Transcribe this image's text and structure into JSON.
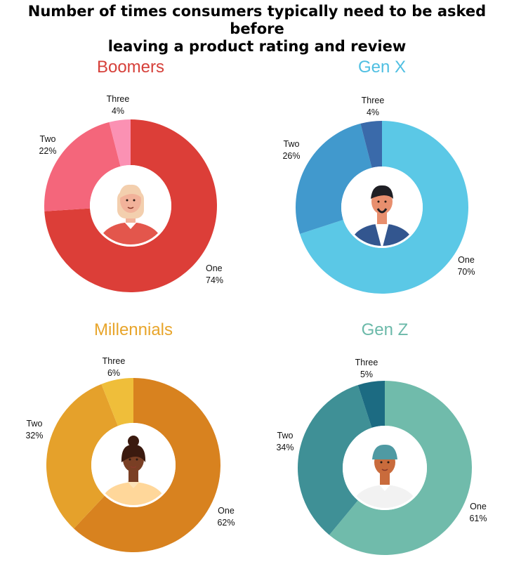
{
  "title_lines": [
    "Number of times consumers typically need to be asked before",
    "leaving a product rating and review"
  ],
  "chart_data": [
    {
      "type": "pie",
      "title": "Boomers",
      "title_color": "#d6403a",
      "categories": [
        "One",
        "Two",
        "Three"
      ],
      "values": [
        74,
        22,
        4
      ],
      "value_labels": [
        "74%",
        "22%",
        "4%"
      ],
      "colors": [
        "#dc3e38",
        "#f4667b",
        "#fb91b3"
      ],
      "avatar": "boomer-woman-avatar"
    },
    {
      "type": "pie",
      "title": "Gen X",
      "title_color": "#4fbfe2",
      "categories": [
        "One",
        "Two",
        "Three"
      ],
      "values": [
        70,
        26,
        4
      ],
      "value_labels": [
        "70%",
        "26%",
        "4%"
      ],
      "colors": [
        "#5bc8e6",
        "#4199cd",
        "#3a6aaa"
      ],
      "avatar": "genx-man-avatar"
    },
    {
      "type": "pie",
      "title": "Millennials",
      "title_color": "#e8a52b",
      "categories": [
        "One",
        "Two",
        "Three"
      ],
      "values": [
        62,
        32,
        6
      ],
      "value_labels": [
        "62%",
        "32%",
        "6%"
      ],
      "colors": [
        "#d8821f",
        "#e5a12b",
        "#efbe3a"
      ],
      "avatar": "millennial-woman-avatar"
    },
    {
      "type": "pie",
      "title": "Gen Z",
      "title_color": "#6bb9a9",
      "categories": [
        "One",
        "Two",
        "Three"
      ],
      "values": [
        61,
        34,
        5
      ],
      "value_labels": [
        "61%",
        "34%",
        "5%"
      ],
      "colors": [
        "#70bbab",
        "#3f9096",
        "#1c6b82"
      ],
      "avatar": "genz-man-avatar"
    }
  ]
}
